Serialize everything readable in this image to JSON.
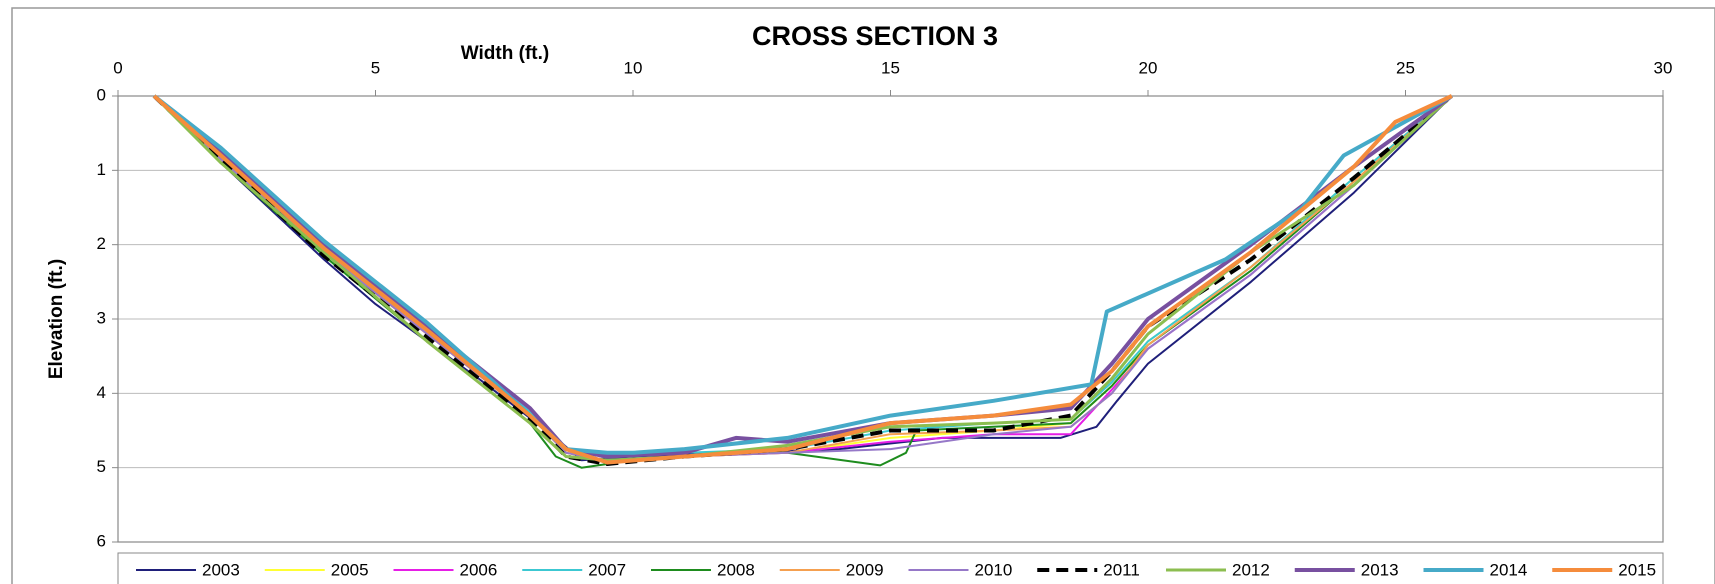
{
  "chart_data": {
    "type": "line",
    "title": "CROSS SECTION 3",
    "x_label": "Width (ft.)",
    "y_label": "Elevation (ft.)",
    "xlim": [
      0,
      30
    ],
    "xticks": [
      0,
      5,
      10,
      15,
      20,
      25,
      30
    ],
    "ylim": [
      0,
      6
    ],
    "yticks": [
      0,
      1,
      2,
      3,
      4,
      5,
      6
    ],
    "y_inverted": true,
    "x_axis_position": "top",
    "grid": true,
    "legend": "bottom",
    "series": [
      {
        "name": "2003",
        "color": "#1f1f7a",
        "line_width": 2,
        "x": [
          0.7,
          2,
          4,
          5,
          7,
          8.5,
          9,
          10,
          12,
          14,
          16,
          18.3,
          19,
          19.4,
          20,
          22,
          24,
          25.9
        ],
        "values": [
          0,
          0.9,
          2.2,
          2.8,
          3.8,
          4.6,
          4.9,
          4.85,
          4.8,
          4.75,
          4.6,
          4.6,
          4.45,
          4.1,
          3.6,
          2.5,
          1.3,
          0
        ]
      },
      {
        "name": "2005",
        "color": "#ffff33",
        "line_width": 2,
        "x": [
          0.7,
          2,
          4,
          6,
          8,
          8.7,
          9.5,
          11,
          13,
          15,
          17,
          18.5,
          19.3,
          20,
          22,
          24,
          25.9
        ],
        "values": [
          0,
          0.85,
          2.1,
          3.2,
          4.3,
          4.8,
          4.9,
          4.85,
          4.8,
          4.6,
          4.5,
          4.4,
          3.9,
          3.3,
          2.3,
          1.1,
          0
        ]
      },
      {
        "name": "2006",
        "color": "#e61ee6",
        "line_width": 2,
        "x": [
          0.7,
          2,
          4,
          6,
          8,
          8.7,
          9.5,
          11,
          13,
          15,
          17,
          18.5,
          19.3,
          20,
          22,
          24,
          25.9
        ],
        "values": [
          0,
          0.85,
          2.1,
          3.2,
          4.3,
          4.8,
          4.9,
          4.85,
          4.8,
          4.65,
          4.55,
          4.55,
          3.95,
          3.4,
          2.4,
          1.2,
          0
        ]
      },
      {
        "name": "2007",
        "color": "#3cc8d2",
        "line_width": 2,
        "x": [
          0.7,
          2,
          4,
          6,
          8,
          8.7,
          9.5,
          11,
          13,
          15,
          17,
          18.5,
          19.3,
          20,
          22,
          24,
          25.9
        ],
        "values": [
          0,
          0.8,
          2.05,
          3.15,
          4.25,
          4.75,
          4.85,
          4.8,
          4.75,
          4.5,
          4.4,
          4.35,
          3.85,
          3.3,
          2.3,
          1.1,
          0
        ]
      },
      {
        "name": "2008",
        "color": "#1e8c1e",
        "line_width": 2,
        "x": [
          0.7,
          2,
          4,
          6,
          8,
          8.5,
          9,
          10,
          12,
          13,
          14.8,
          15.3,
          15.5,
          17,
          18.5,
          19.3,
          20,
          22,
          24,
          25.9
        ],
        "values": [
          0,
          0.9,
          2.15,
          3.3,
          4.4,
          4.85,
          5,
          4.9,
          4.8,
          4.8,
          4.97,
          4.8,
          4.5,
          4.45,
          4.4,
          3.9,
          3.35,
          2.35,
          1.15,
          0
        ]
      },
      {
        "name": "2009",
        "color": "#f5a050",
        "line_width": 2,
        "x": [
          0.7,
          2,
          4,
          6,
          8,
          8.7,
          9.5,
          11,
          13,
          15,
          17,
          18.5,
          19.3,
          20,
          22,
          24,
          25.9
        ],
        "values": [
          0,
          0.8,
          2.1,
          3.2,
          4.3,
          4.8,
          4.9,
          4.85,
          4.8,
          4.55,
          4.5,
          4.45,
          4.0,
          3.35,
          2.3,
          1.15,
          0
        ]
      },
      {
        "name": "2010",
        "color": "#9678c8",
        "line_width": 2,
        "x": [
          0.7,
          2,
          4,
          6,
          8,
          8.7,
          9.5,
          11,
          13,
          15,
          17,
          18.5,
          19.3,
          20,
          22,
          24,
          25.9
        ],
        "values": [
          0,
          0.85,
          2.1,
          3.2,
          4.3,
          4.8,
          4.9,
          4.85,
          4.8,
          4.75,
          4.55,
          4.45,
          4.0,
          3.4,
          2.4,
          1.2,
          0
        ]
      },
      {
        "name": "2011",
        "color": "#000000",
        "line_width": 4,
        "dash": true,
        "x": [
          0.7,
          2,
          4,
          6,
          8,
          8.7,
          9.5,
          11,
          13,
          15,
          17,
          18.5,
          19.3,
          20,
          22,
          24,
          25.9
        ],
        "values": [
          0,
          0.85,
          2.15,
          3.25,
          4.35,
          4.85,
          4.95,
          4.85,
          4.75,
          4.5,
          4.5,
          4.3,
          3.7,
          3.1,
          2.2,
          1.1,
          0
        ]
      },
      {
        "name": "2012",
        "color": "#8cbe50",
        "line_width": 3,
        "x": [
          0.7,
          2,
          4,
          6,
          8,
          8.7,
          9.5,
          11,
          13,
          15,
          17,
          18.5,
          19.3,
          20,
          22,
          24,
          25.9
        ],
        "values": [
          0,
          0.9,
          2.1,
          3.3,
          4.4,
          4.85,
          4.9,
          4.85,
          4.7,
          4.45,
          4.4,
          4.35,
          3.8,
          3.2,
          2.1,
          1.2,
          0
        ]
      },
      {
        "name": "2013",
        "color": "#7850a0",
        "line_width": 4,
        "x": [
          0.7,
          2,
          4,
          6,
          8,
          8.7,
          9.5,
          11,
          12,
          13,
          15,
          17,
          18.5,
          19.3,
          20,
          22,
          24,
          25.9
        ],
        "values": [
          0,
          0.75,
          2.0,
          3.1,
          4.2,
          4.75,
          4.85,
          4.8,
          4.6,
          4.65,
          4.4,
          4.3,
          4.2,
          3.6,
          3.0,
          2.0,
          0.95,
          0
        ]
      },
      {
        "name": "2014",
        "color": "#46aac8",
        "line_width": 4,
        "x": [
          0.7,
          2,
          4,
          6,
          7.3,
          8,
          8.7,
          9.5,
          10,
          11,
          13,
          15,
          17,
          18.9,
          19.2,
          21.5,
          23,
          23.8,
          25.9
        ],
        "values": [
          0,
          0.7,
          1.95,
          3.05,
          3.85,
          4.3,
          4.75,
          4.8,
          4.8,
          4.75,
          4.6,
          4.3,
          4.1,
          3.88,
          2.9,
          2.2,
          1.5,
          0.8,
          0
        ]
      },
      {
        "name": "2015",
        "color": "#f58c3c",
        "line_width": 4,
        "x": [
          0.7,
          2,
          4,
          6,
          8,
          8.7,
          9.5,
          11,
          13,
          15,
          17,
          18.5,
          19.3,
          20,
          22,
          24,
          24.8,
          25.9
        ],
        "values": [
          0,
          0.8,
          2.05,
          3.15,
          4.3,
          4.75,
          4.93,
          4.85,
          4.75,
          4.4,
          4.3,
          4.15,
          3.7,
          3.1,
          2.1,
          0.95,
          0.35,
          0
        ]
      }
    ]
  }
}
